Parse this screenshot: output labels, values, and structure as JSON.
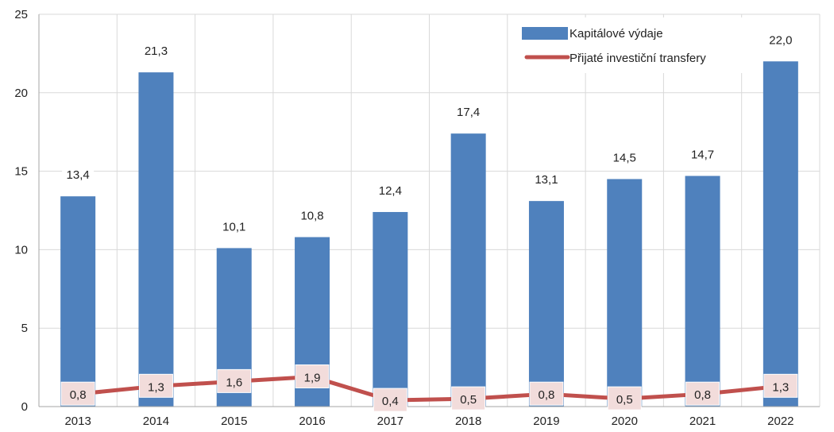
{
  "chart_data": {
    "type": "bar",
    "categories": [
      "2013",
      "2014",
      "2015",
      "2016",
      "2017",
      "2018",
      "2019",
      "2020",
      "2021",
      "2022"
    ],
    "series": [
      {
        "name": "Kapitálové výdaje",
        "kind": "bar",
        "color": "#4F81BD",
        "values": [
          13.4,
          21.3,
          10.1,
          10.8,
          12.4,
          17.4,
          13.1,
          14.5,
          14.7,
          22.0
        ],
        "labels": [
          "13,4",
          "21,3",
          "10,1",
          "10,8",
          "12,4",
          "17,4",
          "13,1",
          "14,5",
          "14,7",
          "22,0"
        ]
      },
      {
        "name": "Přijaté investiční transfery",
        "kind": "line",
        "color": "#C0504D",
        "label_background": "#F2DCDB",
        "values": [
          0.8,
          1.3,
          1.6,
          1.9,
          0.4,
          0.5,
          0.8,
          0.5,
          0.8,
          1.3
        ],
        "labels": [
          "0,8",
          "1,3",
          "1,6",
          "1,9",
          "0,4",
          "0,5",
          "0,8",
          "0,5",
          "0,8",
          "1,3"
        ]
      }
    ],
    "title": "",
    "xlabel": "",
    "ylabel": "",
    "ylim": [
      0,
      25
    ],
    "yticks": [
      "0",
      "5",
      "10",
      "15",
      "20",
      "25"
    ],
    "grid": "both",
    "legend_position": "top-right"
  }
}
